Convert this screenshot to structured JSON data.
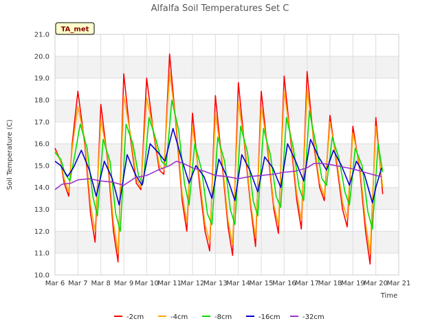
{
  "chart_data": {
    "type": "line",
    "title": "Alfalfa Soil Temperatures Set C",
    "xlabel": "Time",
    "ylabel": "Soil Temperature (C)",
    "tag": "TA_met",
    "ylim": [
      10.0,
      21.0
    ],
    "yticks": [
      "10.0",
      "11.0",
      "12.0",
      "13.0",
      "14.0",
      "15.0",
      "16.0",
      "17.0",
      "18.0",
      "19.0",
      "20.0",
      "21.0"
    ],
    "xlim": [
      6,
      21
    ],
    "xticks": [
      "Mar 6",
      "Mar 7",
      "Mar 8",
      "Mar 9",
      "Mar 10",
      "Mar 11",
      "Mar 12",
      "Mar 13",
      "Mar 14",
      "Mar 15",
      "Mar 16",
      "Mar 17",
      "Mar 18",
      "Mar 19",
      "Mar 20",
      "Mar 21"
    ],
    "grid": true,
    "legend_position": "bottom",
    "x_unit": "day of March",
    "series": [
      {
        "name": "-2cm",
        "color": "#ff0000",
        "x": [
          6.0,
          6.25,
          6.4,
          6.6,
          6.75,
          7.0,
          7.3,
          7.55,
          7.75,
          8.0,
          8.3,
          8.55,
          8.75,
          9.0,
          9.3,
          9.55,
          9.75,
          10.0,
          10.3,
          10.55,
          10.75,
          11.0,
          11.3,
          11.55,
          11.75,
          12.0,
          12.3,
          12.55,
          12.75,
          13.0,
          13.3,
          13.55,
          13.75,
          14.0,
          14.3,
          14.55,
          14.75,
          15.0,
          15.3,
          15.55,
          15.75,
          16.0,
          16.3,
          16.55,
          16.75,
          17.0,
          17.3,
          17.55,
          17.75,
          18.0,
          18.3,
          18.55,
          18.75,
          19.0,
          19.3,
          19.55,
          19.75,
          20.0,
          20.3
        ],
        "y": [
          15.8,
          15.2,
          14.2,
          13.6,
          16.0,
          18.4,
          16.0,
          12.8,
          11.5,
          17.8,
          15.2,
          12.0,
          10.6,
          19.2,
          16.2,
          14.2,
          13.9,
          19.0,
          16.5,
          14.8,
          14.6,
          20.1,
          16.6,
          13.4,
          12.0,
          17.4,
          14.2,
          12.0,
          11.1,
          18.2,
          15.0,
          12.2,
          10.9,
          18.8,
          15.6,
          13.0,
          11.3,
          18.4,
          15.5,
          13.0,
          11.9,
          19.1,
          16.0,
          13.4,
          12.1,
          19.3,
          15.9,
          14.0,
          13.4,
          17.3,
          15.0,
          13.0,
          12.2,
          16.8,
          14.8,
          12.0,
          10.5,
          17.2,
          13.7
        ]
      },
      {
        "name": "-4cm",
        "color": "#ffa500",
        "x": [
          6.0,
          6.25,
          6.4,
          6.6,
          6.75,
          7.0,
          7.3,
          7.55,
          7.75,
          8.0,
          8.3,
          8.55,
          8.75,
          9.0,
          9.3,
          9.55,
          9.75,
          10.0,
          10.3,
          10.55,
          10.75,
          11.0,
          11.3,
          11.55,
          11.75,
          12.0,
          12.3,
          12.55,
          12.75,
          13.0,
          13.3,
          13.55,
          13.75,
          14.0,
          14.3,
          14.55,
          14.75,
          15.0,
          15.3,
          15.55,
          15.75,
          16.0,
          16.3,
          16.55,
          16.75,
          17.0,
          17.3,
          17.55,
          17.75,
          18.0,
          18.3,
          18.55,
          18.75,
          19.0,
          19.3,
          19.55,
          19.75,
          20.0,
          20.3
        ],
        "y": [
          15.7,
          15.2,
          14.4,
          13.8,
          15.8,
          17.7,
          16.2,
          13.2,
          12.0,
          17.1,
          15.4,
          12.4,
          11.0,
          18.2,
          16.4,
          14.4,
          14.0,
          18.1,
          16.6,
          15.0,
          14.8,
          19.3,
          16.8,
          13.7,
          12.4,
          16.8,
          14.5,
          12.3,
          11.5,
          17.4,
          15.2,
          12.5,
          11.4,
          17.9,
          15.8,
          13.2,
          11.7,
          17.7,
          15.7,
          13.2,
          12.3,
          18.4,
          16.2,
          13.7,
          12.5,
          18.5,
          16.1,
          14.2,
          13.6,
          17.0,
          15.2,
          13.3,
          12.6,
          16.5,
          15.0,
          12.4,
          11.0,
          16.8,
          14.0
        ]
      },
      {
        "name": "-8cm",
        "color": "#00dd00",
        "x": [
          6.0,
          6.25,
          6.45,
          6.65,
          6.85,
          7.1,
          7.4,
          7.65,
          7.85,
          8.1,
          8.4,
          8.65,
          8.85,
          9.1,
          9.4,
          9.65,
          9.85,
          10.1,
          10.4,
          10.65,
          10.85,
          11.1,
          11.4,
          11.65,
          11.85,
          12.1,
          12.4,
          12.65,
          12.85,
          13.1,
          13.4,
          13.65,
          13.85,
          14.1,
          14.4,
          14.65,
          14.85,
          15.1,
          15.4,
          15.65,
          15.85,
          16.1,
          16.4,
          16.65,
          16.85,
          17.1,
          17.4,
          17.65,
          17.85,
          18.1,
          18.4,
          18.65,
          18.85,
          19.1,
          19.4,
          19.65,
          19.85,
          20.1,
          20.3
        ],
        "y": [
          15.6,
          15.3,
          14.6,
          14.3,
          15.4,
          16.9,
          15.8,
          13.6,
          12.7,
          16.2,
          15.2,
          12.8,
          12.0,
          16.9,
          16.0,
          14.5,
          14.2,
          17.2,
          16.2,
          15.2,
          15.0,
          18.0,
          16.6,
          14.2,
          13.2,
          16.0,
          14.8,
          12.8,
          12.3,
          16.3,
          15.2,
          13.0,
          12.3,
          16.8,
          15.6,
          13.4,
          12.7,
          16.7,
          15.5,
          13.6,
          13.1,
          17.2,
          15.8,
          14.0,
          13.4,
          17.5,
          15.9,
          14.4,
          14.1,
          16.3,
          15.3,
          13.8,
          13.2,
          15.8,
          15.0,
          12.9,
          12.1,
          16.0,
          14.7
        ]
      },
      {
        "name": "-16cm",
        "color": "#0000cc",
        "x": [
          6.0,
          6.25,
          6.55,
          6.8,
          7.15,
          7.5,
          7.8,
          8.15,
          8.5,
          8.8,
          9.15,
          9.5,
          9.8,
          10.15,
          10.5,
          10.8,
          11.15,
          11.5,
          11.85,
          12.15,
          12.5,
          12.85,
          13.15,
          13.5,
          13.85,
          14.15,
          14.5,
          14.85,
          15.15,
          15.5,
          15.85,
          16.15,
          16.5,
          16.85,
          17.15,
          17.5,
          17.85,
          18.15,
          18.5,
          18.85,
          19.15,
          19.5,
          19.85,
          20.0,
          20.25
        ],
        "y": [
          15.2,
          15.0,
          14.5,
          14.9,
          15.7,
          14.8,
          13.6,
          15.2,
          14.4,
          13.2,
          15.5,
          14.6,
          14.1,
          16.0,
          15.6,
          15.2,
          16.7,
          15.4,
          14.2,
          15.0,
          14.5,
          13.5,
          15.3,
          14.5,
          13.4,
          15.5,
          14.8,
          13.8,
          15.4,
          14.9,
          14.0,
          16.0,
          15.2,
          14.3,
          16.2,
          15.4,
          14.8,
          15.7,
          15.0,
          14.1,
          15.2,
          14.6,
          13.3,
          14.0,
          14.9
        ]
      },
      {
        "name": "-32cm",
        "color": "#9933cc",
        "x": [
          6.0,
          6.3,
          6.7,
          7.0,
          7.5,
          8.0,
          8.5,
          9.0,
          9.5,
          10.0,
          10.5,
          11.0,
          11.3,
          11.6,
          12.0,
          12.5,
          13.0,
          13.5,
          14.0,
          14.5,
          15.0,
          15.5,
          16.0,
          16.5,
          17.0,
          17.3,
          17.6,
          18.0,
          18.5,
          19.0,
          19.5,
          20.0,
          20.25
        ],
        "y": [
          13.9,
          14.15,
          14.2,
          14.35,
          14.4,
          14.3,
          14.25,
          14.1,
          14.45,
          14.55,
          14.8,
          15.0,
          15.2,
          15.1,
          14.9,
          14.75,
          14.55,
          14.5,
          14.4,
          14.5,
          14.55,
          14.6,
          14.7,
          14.75,
          14.9,
          15.1,
          15.1,
          15.05,
          14.95,
          14.85,
          14.7,
          14.55,
          14.5
        ]
      }
    ]
  }
}
